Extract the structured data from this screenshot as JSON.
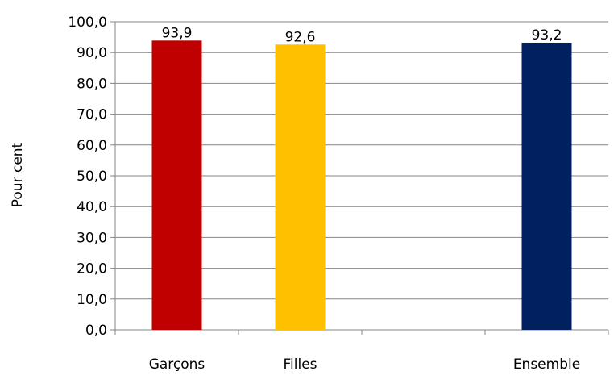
{
  "chart_data": {
    "type": "bar",
    "categories": [
      "Garçons",
      "Filles",
      "",
      "Ensemble"
    ],
    "values": [
      93.9,
      92.6,
      null,
      93.2
    ],
    "data_labels": [
      "93,9",
      "92,6",
      "",
      "93,2"
    ],
    "colors": [
      "#C00000",
      "#FFC000",
      null,
      "#002060"
    ],
    "title": "",
    "xlabel": "",
    "ylabel": "Pour cent",
    "ylim": [
      0,
      100
    ],
    "yticks": [
      0,
      10,
      20,
      30,
      40,
      50,
      60,
      70,
      80,
      90,
      100
    ],
    "ytick_labels": [
      "0,0",
      "10,0",
      "20,0",
      "30,0",
      "40,0",
      "50,0",
      "60,0",
      "70,0",
      "80,0",
      "90,0",
      "100,0"
    ],
    "grid": true,
    "legend": "none"
  }
}
